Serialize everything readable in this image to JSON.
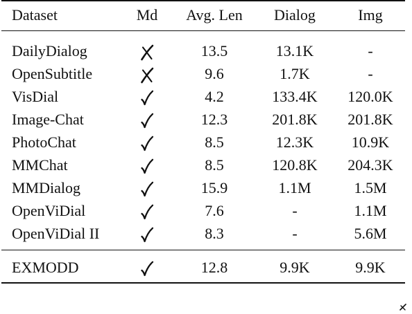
{
  "table": {
    "headers": {
      "dataset": "Dataset",
      "md": "Md",
      "avg_len": "Avg. Len",
      "dialog": "Dialog",
      "img": "Img"
    },
    "rows": [
      {
        "dataset": "DailyDialog",
        "md": "cross",
        "avg_len": "13.5",
        "dialog": "13.1K",
        "img": "-"
      },
      {
        "dataset": "OpenSubtitle",
        "md": "cross",
        "avg_len": "9.6",
        "dialog": "1.7K",
        "img": "-"
      },
      {
        "dataset": "VisDial",
        "md": "check",
        "avg_len": "4.2",
        "dialog": "133.4K",
        "img": "120.0K"
      },
      {
        "dataset": "Image-Chat",
        "md": "check",
        "avg_len": "12.3",
        "dialog": "201.8K",
        "img": "201.8K"
      },
      {
        "dataset": "PhotoChat",
        "md": "check",
        "avg_len": "8.5",
        "dialog": "12.3K",
        "img": "10.9K"
      },
      {
        "dataset": "MMChat",
        "md": "check",
        "avg_len": "8.5",
        "dialog": "120.8K",
        "img": "204.3K"
      },
      {
        "dataset": "MMDialog",
        "md": "check",
        "avg_len": "15.9",
        "dialog": "1.1M",
        "img": "1.5M"
      },
      {
        "dataset": "OpenViDial",
        "md": "check",
        "avg_len": "7.6",
        "dialog": "-",
        "img": "1.1M"
      },
      {
        "dataset": "OpenViDial II",
        "md": "check",
        "avg_len": "8.3",
        "dialog": "-",
        "img": "5.6M"
      }
    ],
    "summary_row": {
      "dataset": "EXMODD",
      "md": "check",
      "avg_len": "12.8",
      "dialog": "9.9K",
      "img": "9.9K"
    }
  },
  "icons": {
    "check": "check-mark-icon",
    "cross": "cross-mark-icon"
  }
}
